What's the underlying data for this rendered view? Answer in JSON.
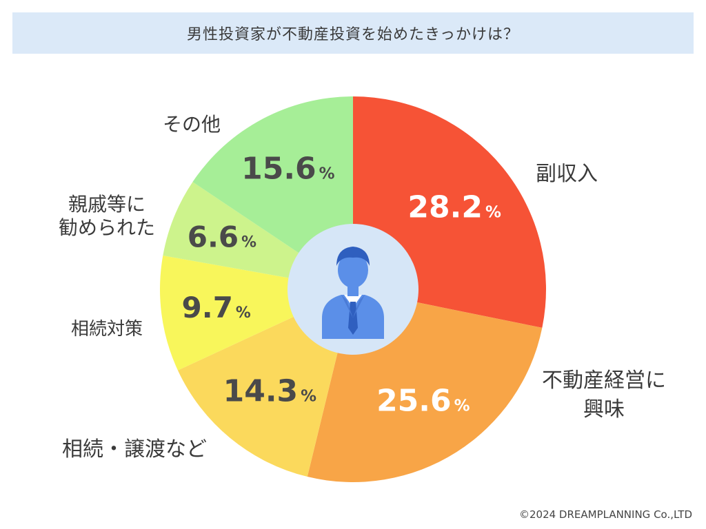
{
  "chart_data": {
    "type": "pie",
    "title": "男性投資家が不動産投資を始めたきっかけは？",
    "unit": "%",
    "slices": [
      {
        "label": "副収入",
        "value": 28.2,
        "value_text": "28.2",
        "color": "#f65336"
      },
      {
        "label": "不動産経営に興味",
        "value": 25.6,
        "value_text": "25.6",
        "color": "#f8a547"
      },
      {
        "label": "相続・譲渡など",
        "value": 14.3,
        "value_text": "14.3",
        "color": "#fbd95c"
      },
      {
        "label": "相続対策",
        "value": 9.7,
        "value_text": "9.7",
        "color": "#f8f65b"
      },
      {
        "label": "親戚等に勧められた",
        "value": 6.6,
        "value_text": "6.6",
        "color": "#cdf38c"
      },
      {
        "label": "その他",
        "value": 15.6,
        "value_text": "15.6",
        "color": "#a6ee97"
      }
    ],
    "center_icon": "businessman-icon"
  },
  "copyright": "©2024 DREAMPLANNING Co.,LTD",
  "colors": {
    "title_bg": "#dbe9f8",
    "center_circle": "#d6e6f7",
    "icon": "#5b8fe8"
  }
}
